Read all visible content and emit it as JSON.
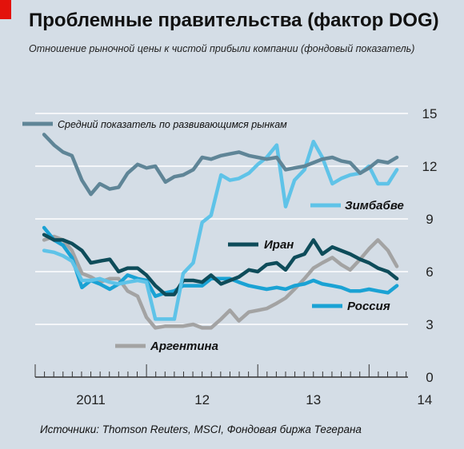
{
  "header": {
    "title": "Проблемные правительства (фактор DOG)",
    "subtitle": "Отношение рыночной цены к чистой прибыли компании (фондовый показатель)"
  },
  "footer": {
    "source": "Источники: Thomson Reuters, MSCI, Фондовая биржа Тегерана"
  },
  "chart_data": {
    "type": "line",
    "title": "Проблемные правительства (фактор DOG)",
    "subtitle": "Отношение рыночной цены к чистой прибыли компании (фондовый показатель)",
    "xlabel": "",
    "ylabel": "",
    "ylim": [
      0,
      15
    ],
    "yticks": [
      0,
      3,
      6,
      9,
      12,
      15
    ],
    "xlim": [
      2011.0,
      2014.35
    ],
    "xticks": [
      {
        "value": 2011.5,
        "label": "2011"
      },
      {
        "value": 2012.5,
        "label": "12"
      },
      {
        "value": 2013.5,
        "label": "13"
      },
      {
        "value": 2014.5,
        "label": "14"
      }
    ],
    "grid": "horizontal",
    "series": [
      {
        "name": "Средний показатель по развивающимся рынкам",
        "color": "#5f8597",
        "x": [
          2011.08,
          2011.17,
          2011.25,
          2011.33,
          2011.42,
          2011.5,
          2011.58,
          2011.67,
          2011.75,
          2011.83,
          2011.92,
          2012.0,
          2012.08,
          2012.17,
          2012.25,
          2012.33,
          2012.42,
          2012.5,
          2012.58,
          2012.67,
          2012.75,
          2012.83,
          2012.92,
          2013.0,
          2013.08,
          2013.17,
          2013.25,
          2013.33,
          2013.42,
          2013.5,
          2013.58,
          2013.67,
          2013.75,
          2013.83,
          2013.92,
          2014.0,
          2014.08,
          2014.17,
          2014.25
        ],
        "values": [
          13.8,
          13.2,
          12.8,
          12.6,
          11.2,
          10.4,
          11.0,
          10.7,
          10.8,
          11.6,
          12.1,
          11.9,
          12.0,
          11.1,
          11.4,
          11.5,
          11.8,
          12.5,
          12.4,
          12.6,
          12.7,
          12.8,
          12.6,
          12.5,
          12.4,
          12.5,
          11.8,
          11.9,
          12.0,
          12.2,
          12.4,
          12.5,
          12.3,
          12.2,
          11.6,
          11.9,
          12.3,
          12.2,
          12.5
        ]
      },
      {
        "name": "Зимбабве",
        "color": "#5fc3e8",
        "x": [
          2011.08,
          2011.17,
          2011.25,
          2011.33,
          2011.42,
          2011.5,
          2011.58,
          2011.67,
          2011.75,
          2011.83,
          2011.92,
          2012.0,
          2012.08,
          2012.17,
          2012.25,
          2012.33,
          2012.42,
          2012.5,
          2012.58,
          2012.67,
          2012.75,
          2012.83,
          2012.92,
          2013.0,
          2013.08,
          2013.17,
          2013.25,
          2013.33,
          2013.42,
          2013.5,
          2013.58,
          2013.67,
          2013.75,
          2013.83,
          2013.92,
          2014.0,
          2014.08,
          2014.17,
          2014.25
        ],
        "values": [
          7.2,
          7.1,
          6.9,
          6.6,
          5.5,
          5.5,
          5.6,
          5.4,
          5.3,
          5.4,
          5.5,
          5.4,
          3.3,
          3.3,
          3.3,
          5.9,
          6.5,
          8.8,
          9.2,
          11.5,
          11.2,
          11.3,
          11.6,
          12.1,
          12.5,
          13.2,
          9.7,
          11.2,
          11.8,
          13.4,
          12.5,
          11.0,
          11.3,
          11.5,
          11.6,
          12.0,
          11.0,
          11.0,
          11.8
        ]
      },
      {
        "name": "Иран",
        "color": "#0e4c5a",
        "x": [
          2011.08,
          2011.17,
          2011.25,
          2011.33,
          2011.42,
          2011.5,
          2011.58,
          2011.67,
          2011.75,
          2011.83,
          2011.92,
          2012.0,
          2012.08,
          2012.17,
          2012.25,
          2012.33,
          2012.42,
          2012.5,
          2012.58,
          2012.67,
          2012.75,
          2012.83,
          2012.92,
          2013.0,
          2013.08,
          2013.17,
          2013.25,
          2013.33,
          2013.42,
          2013.5,
          2013.58,
          2013.67,
          2013.75,
          2013.83,
          2013.92,
          2014.0,
          2014.08,
          2014.17,
          2014.25
        ],
        "values": [
          8.1,
          7.8,
          7.8,
          7.6,
          7.2,
          6.5,
          6.6,
          6.7,
          6.0,
          6.2,
          6.2,
          5.8,
          5.2,
          4.7,
          4.7,
          5.5,
          5.5,
          5.4,
          5.8,
          5.3,
          5.5,
          5.7,
          6.1,
          6.0,
          6.4,
          6.5,
          6.1,
          6.8,
          7.0,
          7.8,
          7.0,
          7.4,
          7.2,
          7.0,
          6.7,
          6.5,
          6.2,
          6.0,
          5.6
        ]
      },
      {
        "name": "Россия",
        "color": "#1aa2d4",
        "x": [
          2011.08,
          2011.17,
          2011.25,
          2011.33,
          2011.42,
          2011.5,
          2011.58,
          2011.67,
          2011.75,
          2011.83,
          2011.92,
          2012.0,
          2012.08,
          2012.17,
          2012.25,
          2012.33,
          2012.42,
          2012.5,
          2012.58,
          2012.67,
          2012.75,
          2012.83,
          2012.92,
          2013.0,
          2013.08,
          2013.17,
          2013.25,
          2013.33,
          2013.42,
          2013.5,
          2013.58,
          2013.67,
          2013.75,
          2013.83,
          2013.92,
          2014.0,
          2014.08,
          2014.17,
          2014.25
        ],
        "values": [
          8.5,
          7.8,
          7.5,
          6.8,
          5.1,
          5.5,
          5.3,
          5.0,
          5.3,
          5.8,
          5.6,
          5.5,
          4.6,
          4.8,
          4.9,
          5.2,
          5.2,
          5.2,
          5.6,
          5.6,
          5.6,
          5.4,
          5.2,
          5.1,
          5.0,
          5.1,
          5.0,
          5.2,
          5.3,
          5.5,
          5.3,
          5.2,
          5.1,
          4.9,
          4.9,
          5.0,
          4.9,
          4.8,
          5.2
        ]
      },
      {
        "name": "Аргентина",
        "color": "#a3a3a3",
        "x": [
          2011.08,
          2011.17,
          2011.25,
          2011.33,
          2011.42,
          2011.5,
          2011.58,
          2011.67,
          2011.75,
          2011.83,
          2011.92,
          2012.0,
          2012.08,
          2012.17,
          2012.25,
          2012.33,
          2012.42,
          2012.5,
          2012.58,
          2012.67,
          2012.75,
          2012.83,
          2012.92,
          2013.0,
          2013.08,
          2013.17,
          2013.25,
          2013.33,
          2013.42,
          2013.5,
          2013.58,
          2013.67,
          2013.75,
          2013.83,
          2013.92,
          2014.0,
          2014.08,
          2014.17,
          2014.25
        ],
        "values": [
          7.8,
          8.0,
          7.8,
          7.2,
          5.9,
          5.7,
          5.4,
          5.6,
          5.6,
          4.9,
          4.6,
          3.4,
          2.8,
          2.9,
          2.9,
          2.9,
          3.0,
          2.8,
          2.8,
          3.3,
          3.8,
          3.2,
          3.7,
          3.8,
          3.9,
          4.2,
          4.5,
          5.0,
          5.6,
          6.2,
          6.5,
          6.8,
          6.4,
          6.1,
          6.7,
          7.3,
          7.8,
          7.2,
          6.3
        ]
      }
    ],
    "labels": {
      "emerging": "Средний показатель по развивающимся рынкам",
      "zimbabwe": "Зимбабве",
      "iran": "Иран",
      "russia": "Россия",
      "argentina": "Аргентина"
    }
  }
}
